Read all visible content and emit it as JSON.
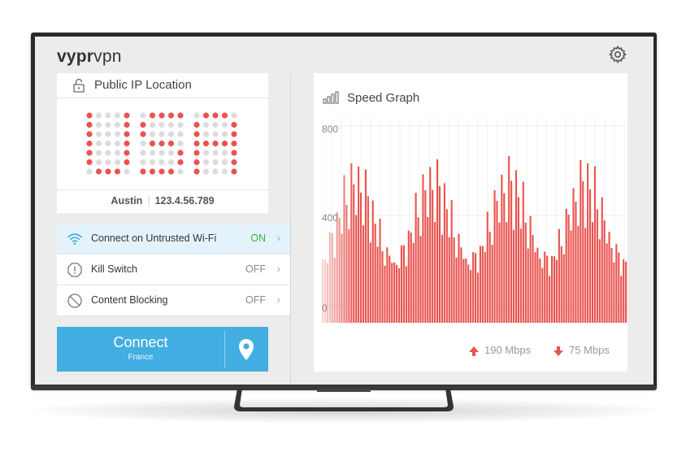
{
  "app": {
    "logo_bold": "vypr",
    "logo_light": "vpn"
  },
  "ip_card": {
    "title": "Public IP Location",
    "city": "Austin",
    "ip": "123.4.56.789",
    "flag_letters": "USA"
  },
  "settings": [
    {
      "label": "Connect on Untrusted Wi-Fi",
      "value": "ON",
      "icon": "wifi-icon",
      "active": true
    },
    {
      "label": "Kill Switch",
      "value": "OFF",
      "icon": "alert-octagon-icon",
      "active": false
    },
    {
      "label": "Content Blocking",
      "value": "OFF",
      "icon": "block-icon",
      "active": false
    }
  ],
  "connect": {
    "label": "Connect",
    "location": "France"
  },
  "speed_graph": {
    "title": "Speed Graph",
    "axis_labels": [
      "800",
      "400",
      "0"
    ],
    "upload": "190 Mbps",
    "download": "75 Mbps"
  },
  "colors": {
    "accent": "#43aee1",
    "red": "#e9534f",
    "on_green": "#3fae4a"
  }
}
